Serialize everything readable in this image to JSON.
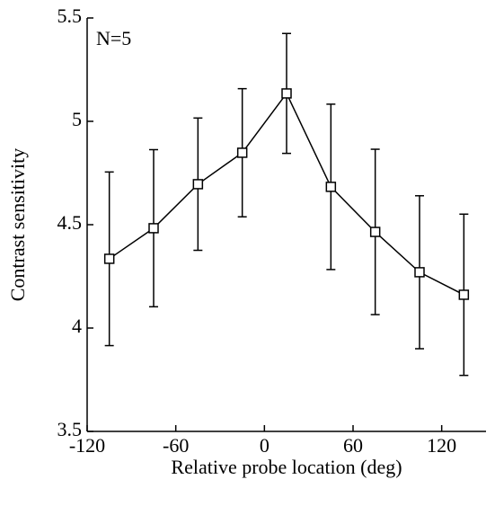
{
  "chart_data": {
    "type": "line",
    "annotation": "N=5",
    "x_label": "Relative probe location (deg)",
    "y_label": "Contrast sensitivity",
    "x": [
      -105,
      -75,
      -45,
      -15,
      15,
      45,
      75,
      105,
      135
    ],
    "series": [
      {
        "color": "#000000",
        "values": [
          4.335,
          4.483,
          4.696,
          4.848,
          5.135,
          4.683,
          4.465,
          4.27,
          4.161
        ],
        "errors": [
          0.42,
          0.38,
          0.32,
          0.31,
          0.29,
          0.4,
          0.4,
          0.37,
          0.39
        ]
      }
    ],
    "xlim": [
      -120,
      150
    ],
    "xticks": [
      -120,
      -60,
      0,
      60,
      120
    ],
    "ylim": [
      3.5,
      5.5
    ],
    "yticks": [
      3.5,
      4,
      4.5,
      5,
      5.5
    ]
  }
}
